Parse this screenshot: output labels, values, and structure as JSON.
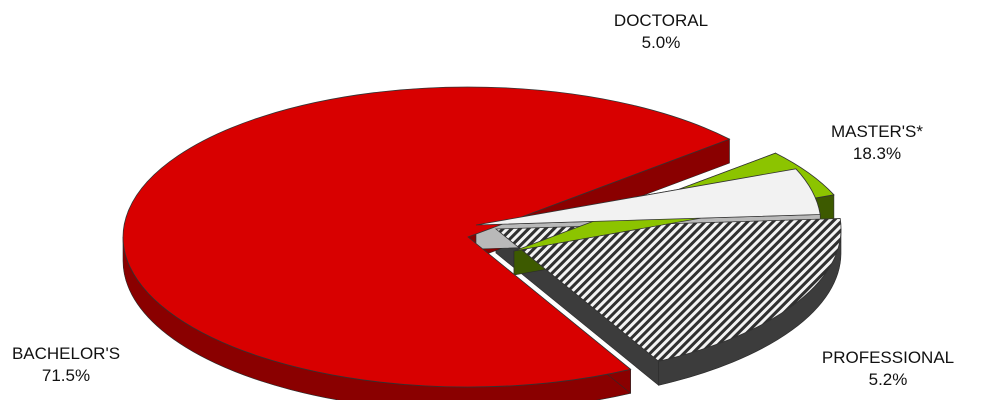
{
  "chart_data": {
    "type": "pie",
    "style": "3d-exploded",
    "title": "",
    "categories": [
      "BACHELOR'S",
      "DOCTORAL",
      "MASTER'S*",
      "PROFESSIONAL"
    ],
    "values": [
      71.5,
      5.0,
      18.3,
      5.2
    ],
    "value_labels": [
      "71.5%",
      "5.0%",
      "18.3%",
      "5.2%"
    ],
    "legend": "none",
    "slices": [
      {
        "label": "BACHELOR'S",
        "value": 71.5,
        "display": "71.5%",
        "color": "#d80000",
        "pattern": "solid"
      },
      {
        "label": "DOCTORAL",
        "value": 5.0,
        "display": "5.0%",
        "color": "#f2f2f2",
        "pattern": "solid"
      },
      {
        "label": "MASTER'S*",
        "value": 18.3,
        "display": "18.3%",
        "color": "#6e6e6e",
        "pattern": "diagonal-hatch"
      },
      {
        "label": "PROFESSIONAL",
        "value": 5.2,
        "display": "5.2%",
        "color": "#8cc400",
        "pattern": "solid"
      }
    ]
  }
}
